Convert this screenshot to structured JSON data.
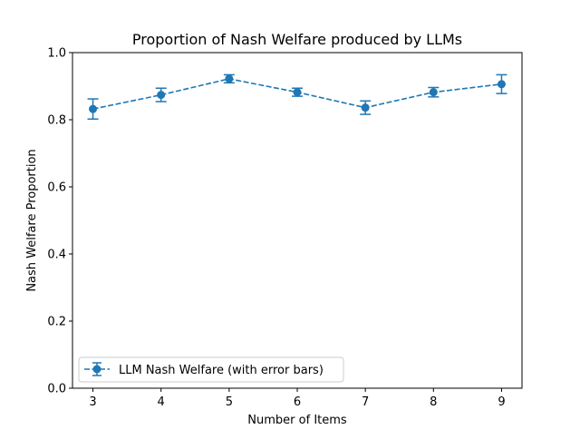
{
  "chart_data": {
    "type": "line",
    "title": "Proportion of Nash Welfare produced by LLMs",
    "xlabel": "Number of Items",
    "ylabel": "Nash Welfare Proportion",
    "x": [
      3,
      4,
      5,
      6,
      7,
      8,
      9
    ],
    "xlim": [
      2.7,
      9.3
    ],
    "ylim": [
      0,
      1
    ],
    "yticks": [
      0.0,
      0.2,
      0.4,
      0.6,
      0.8,
      1.0
    ],
    "ytick_labels": [
      "0.0",
      "0.2",
      "0.4",
      "0.6",
      "0.8",
      "1.0"
    ],
    "xtick_labels": [
      "3",
      "4",
      "5",
      "6",
      "7",
      "8",
      "9"
    ],
    "grid": false,
    "legend_position": "lower-left",
    "series": [
      {
        "name": "LLM Nash Welfare (with error bars)",
        "values": [
          0.832,
          0.874,
          0.922,
          0.882,
          0.836,
          0.882,
          0.906
        ],
        "errors": [
          0.03,
          0.02,
          0.012,
          0.012,
          0.02,
          0.014,
          0.028
        ],
        "color": "#1f77b4",
        "line_style": "dashed",
        "marker": "circle"
      }
    ]
  }
}
